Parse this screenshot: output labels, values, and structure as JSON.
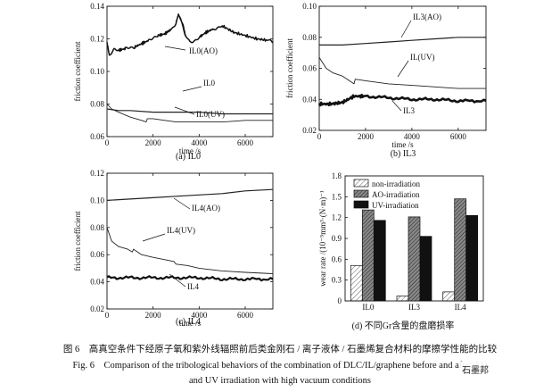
{
  "figure": {
    "caption_cn": "图 6　高真空条件下经原子氧和紫外线辐照前后类金刚石 / 离子液体 / 石墨烯复合材料的摩擦学性能的比较",
    "caption_en_line1": "Fig. 6　Comparison of the tribological behaviors of the combination of DLC/IL/graphene before and after AO",
    "caption_en_line2": "and UV irradiation with high vacuum conditions",
    "watermark": "石墨邦"
  },
  "chart_data": [
    {
      "id": "a",
      "type": "line",
      "caption": "(a)  IL0",
      "xlabel": "time /s",
      "ylabel": "friction coefficient",
      "xlim": [
        0,
        7200
      ],
      "ylim": [
        0.06,
        0.14
      ],
      "xticks": [
        "0",
        "2000",
        "4000",
        "6000"
      ],
      "yticks": [
        "0.06",
        "0.08",
        "0.10",
        "0.12",
        "0.14"
      ],
      "series": [
        {
          "name": "IL0(AO)",
          "x": [
            0,
            100,
            300,
            500,
            800,
            1000,
            1200,
            1500,
            1800,
            2000,
            2200,
            2500,
            2800,
            3000,
            3100,
            3200,
            3300,
            3400,
            3600,
            3800,
            4000,
            4300,
            4600,
            5000,
            5500,
            6000,
            6500,
            7000,
            7200
          ],
          "y": [
            0.118,
            0.11,
            0.114,
            0.113,
            0.114,
            0.115,
            0.115,
            0.117,
            0.119,
            0.121,
            0.122,
            0.123,
            0.126,
            0.13,
            0.135,
            0.132,
            0.128,
            0.122,
            0.118,
            0.119,
            0.121,
            0.124,
            0.126,
            0.128,
            0.124,
            0.122,
            0.12,
            0.119,
            0.118
          ]
        },
        {
          "name": "IL0",
          "x": [
            0,
            500,
            1000,
            2000,
            3000,
            4000,
            5000,
            6000,
            7200
          ],
          "y": [
            0.077,
            0.076,
            0.076,
            0.075,
            0.075,
            0.075,
            0.074,
            0.074,
            0.074
          ]
        },
        {
          "name": "IL0(UV)",
          "x": [
            0,
            200,
            500,
            1000,
            1500,
            1700,
            1750,
            2000,
            2500,
            3000,
            4000,
            5000,
            6000,
            7200
          ],
          "y": [
            0.08,
            0.077,
            0.075,
            0.072,
            0.07,
            0.069,
            0.071,
            0.071,
            0.07,
            0.069,
            0.069,
            0.069,
            0.07,
            0.07
          ]
        }
      ],
      "labels": [
        "IL0(AO)",
        "IL0",
        "IL0(UV)"
      ]
    },
    {
      "id": "b",
      "type": "line",
      "caption": "(b)  IL3",
      "xlabel": "time /s",
      "ylabel": "friction coefficient",
      "xlim": [
        0,
        7200
      ],
      "ylim": [
        0.02,
        0.1
      ],
      "xticks": [
        "0",
        "2000",
        "4000",
        "6000"
      ],
      "yticks": [
        "0.02",
        "0.04",
        "0.06",
        "0.08",
        "0.10"
      ],
      "series": [
        {
          "name": "IL3(AO)",
          "x": [
            0,
            1000,
            2000,
            3000,
            4000,
            5000,
            6000,
            7200
          ],
          "y": [
            0.075,
            0.075,
            0.076,
            0.077,
            0.078,
            0.079,
            0.08,
            0.08
          ]
        },
        {
          "name": "IL(UV)",
          "x": [
            0,
            300,
            600,
            1000,
            1300,
            1500,
            1550,
            2000,
            3000,
            4000,
            5000,
            6000,
            7200
          ],
          "y": [
            0.067,
            0.06,
            0.057,
            0.055,
            0.052,
            0.05,
            0.053,
            0.052,
            0.05,
            0.049,
            0.048,
            0.047,
            0.047
          ]
        },
        {
          "name": "IL3",
          "x": [
            0,
            500,
            1000,
            1500,
            2000,
            3000,
            4000,
            5000,
            6000,
            7200
          ],
          "y": [
            0.037,
            0.037,
            0.038,
            0.042,
            0.042,
            0.041,
            0.04,
            0.04,
            0.039,
            0.039
          ]
        }
      ],
      "labels": [
        "IL3(AO)",
        "IL(UV)",
        "IL3"
      ]
    },
    {
      "id": "c",
      "type": "line",
      "caption": "(c)  IL4",
      "xlabel": "time /s",
      "ylabel": "friction coefficient",
      "xlim": [
        0,
        7200
      ],
      "ylim": [
        0.02,
        0.12
      ],
      "xticks": [
        "0",
        "2000",
        "4000",
        "6000"
      ],
      "yticks": [
        "0.02",
        "0.04",
        "0.06",
        "0.08",
        "0.10",
        "0.12"
      ],
      "series": [
        {
          "name": "IL4(AO)",
          "x": [
            0,
            1000,
            2000,
            3000,
            4000,
            5000,
            6000,
            7200
          ],
          "y": [
            0.1,
            0.101,
            0.102,
            0.103,
            0.104,
            0.105,
            0.107,
            0.108
          ]
        },
        {
          "name": "IL4(UV)",
          "x": [
            0,
            200,
            500,
            900,
            1100,
            1150,
            1500,
            2000,
            2900,
            3000,
            3500,
            4000,
            5000,
            6000,
            7200
          ],
          "y": [
            0.08,
            0.07,
            0.066,
            0.064,
            0.062,
            0.064,
            0.06,
            0.058,
            0.055,
            0.053,
            0.052,
            0.05,
            0.048,
            0.047,
            0.046
          ]
        },
        {
          "name": "IL4",
          "x": [
            0,
            1000,
            2000,
            3000,
            4000,
            5000,
            6000,
            7200
          ],
          "y": [
            0.043,
            0.043,
            0.043,
            0.043,
            0.043,
            0.042,
            0.042,
            0.042
          ]
        }
      ],
      "labels": [
        "IL4(AO)",
        "IL4(UV)",
        "IL4"
      ]
    },
    {
      "id": "d",
      "type": "bar",
      "caption": "(d)  不同Gr含量的盘磨损率",
      "ylabel": "wear rate /(10⁻⁵mm³·(N·m)⁻¹",
      "ylim": [
        0,
        1.8
      ],
      "yticks": [
        "0",
        "0.3",
        "0.6",
        "0.9",
        "1.2",
        "1.5",
        "1.8"
      ],
      "categories": [
        "IL0",
        "IL3",
        "IL4"
      ],
      "series": [
        {
          "name": "non-irradiation",
          "values": [
            0.51,
            0.07,
            0.13
          ]
        },
        {
          "name": "AO-irradiation",
          "values": [
            1.31,
            1.21,
            1.47
          ]
        },
        {
          "name": "UV-irradiation",
          "values": [
            1.16,
            0.93,
            1.23
          ]
        }
      ]
    }
  ]
}
